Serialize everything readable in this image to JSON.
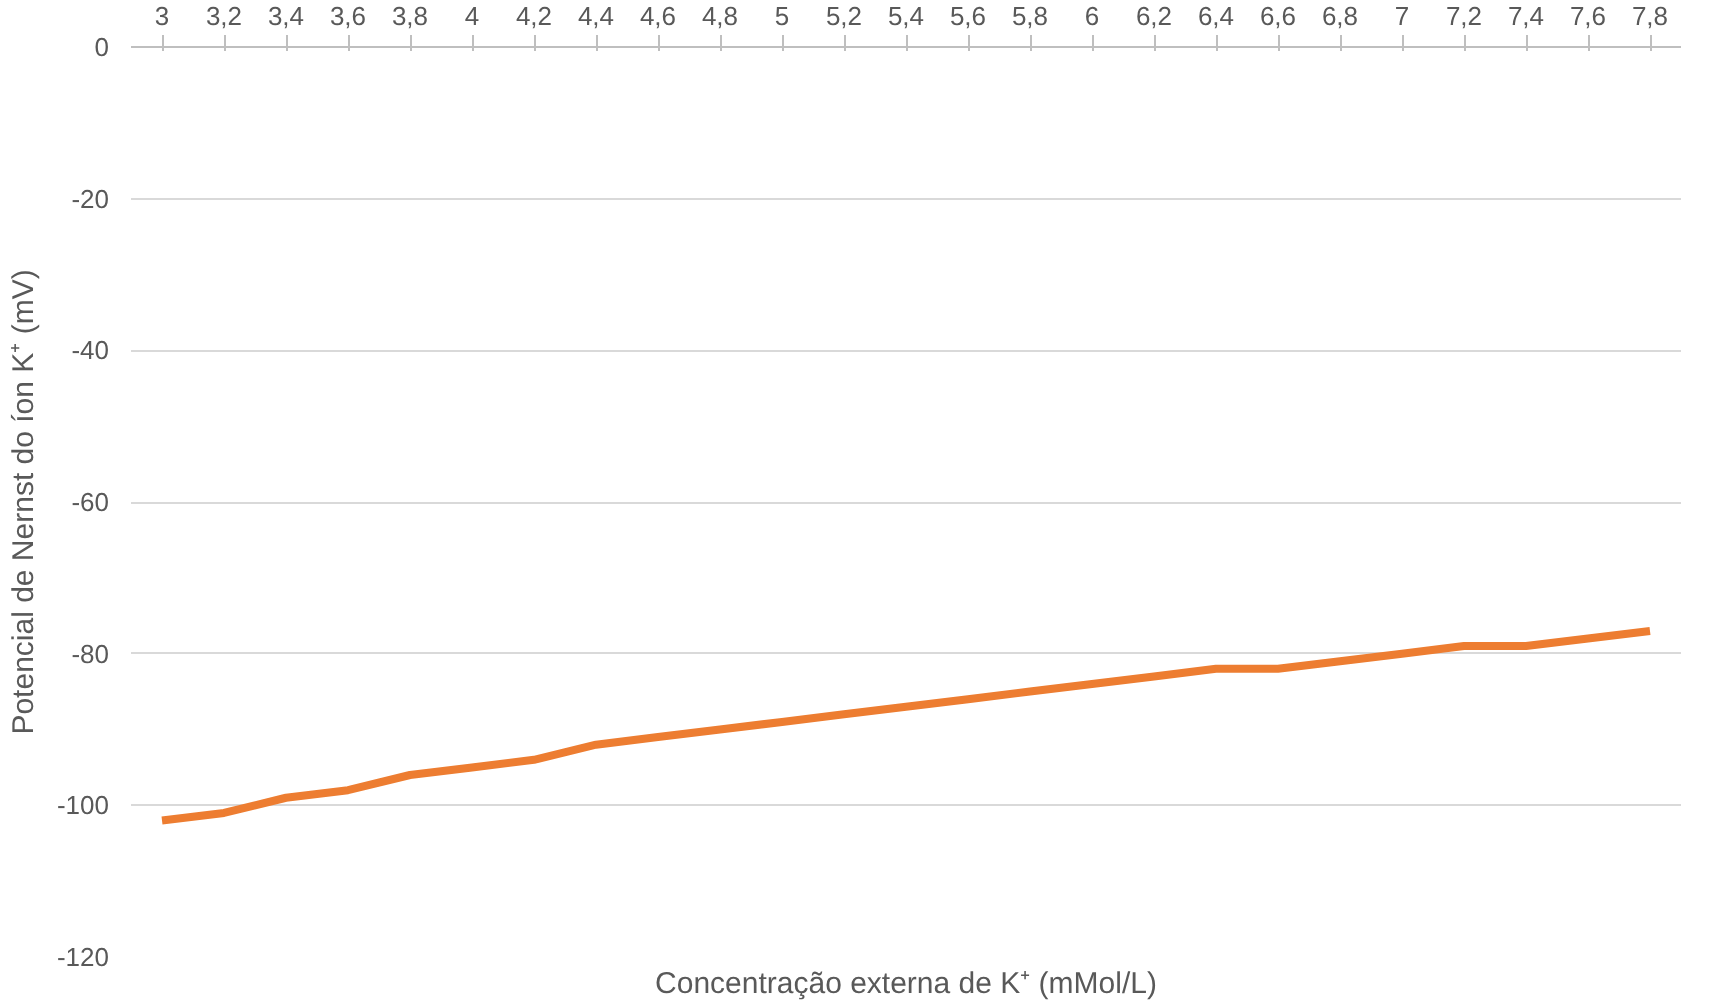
{
  "chart_data": {
    "type": "line",
    "xlabel": "Concentração externa de K⁺ (mMol/L)",
    "ylabel": "Potencial de Nernst do íon K⁺ (mV)",
    "categories": [
      "3",
      "3,2",
      "3,4",
      "3,6",
      "3,8",
      "4",
      "4,2",
      "4,4",
      "4,6",
      "4,8",
      "5",
      "5,2",
      "5,4",
      "5,6",
      "5,8",
      "6",
      "6,2",
      "6,4",
      "6,6",
      "6,8",
      "7",
      "7,2",
      "7,4",
      "7,6",
      "7,8"
    ],
    "series": [
      {
        "color": "#ed7d31",
        "values": [
          -102,
          -101,
          -99,
          -98,
          -96,
          -95,
          -94,
          -92,
          -91,
          -90,
          -89,
          -88,
          -87,
          -86,
          -85,
          -84,
          -83,
          -82,
          -82,
          -81,
          -80,
          -79,
          -79,
          -78,
          -77
        ]
      }
    ],
    "ylim": [
      -120,
      0
    ],
    "yticks": [
      -120,
      -100,
      -80,
      -60,
      -40,
      -20,
      0
    ],
    "grid": "y"
  }
}
